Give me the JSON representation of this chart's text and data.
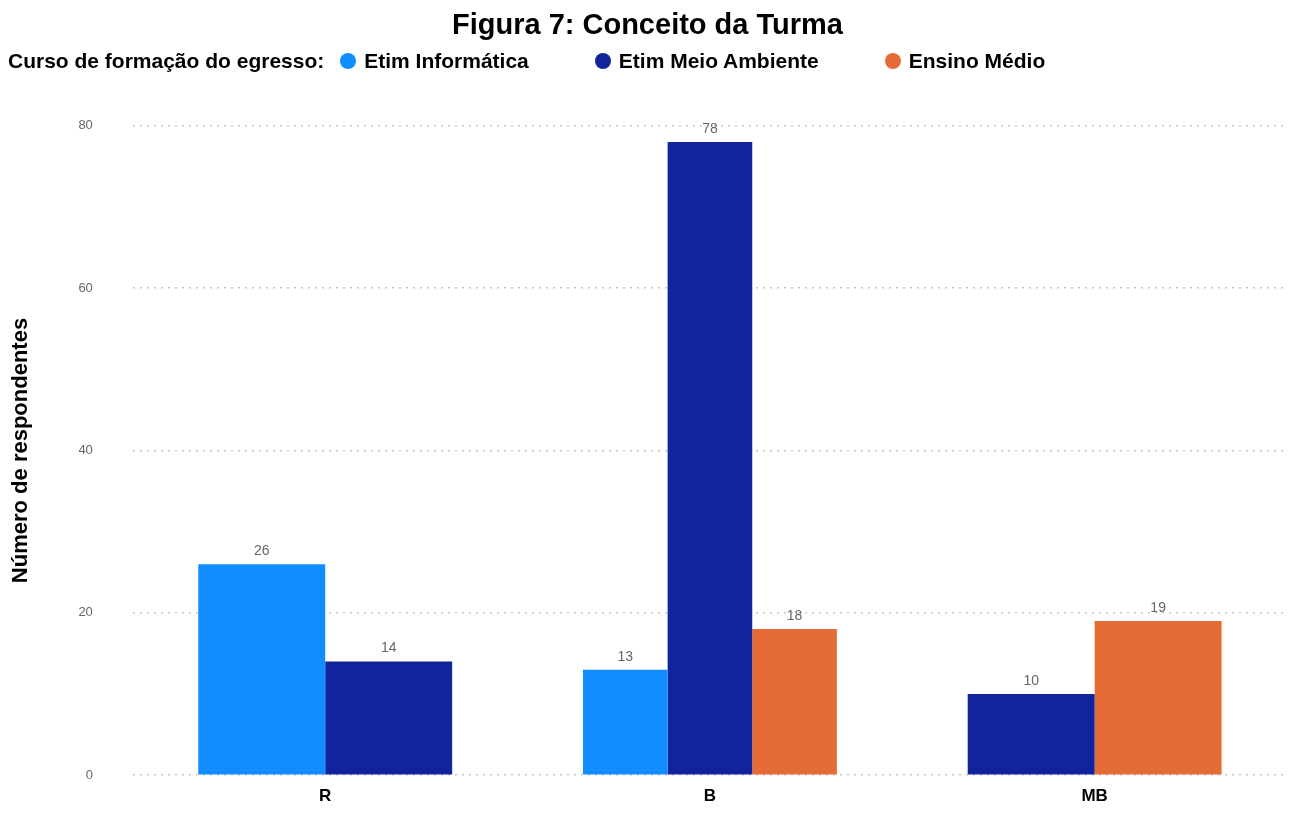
{
  "chart_data": {
    "type": "bar",
    "title": "Figura 7: Conceito da Turma",
    "ylabel": "Número de respondentes",
    "legend_title": "Curso de formação do egresso:",
    "categories": [
      "R",
      "B",
      "MB"
    ],
    "series": [
      {
        "name": "Etim Informática",
        "color": "#118dff",
        "values": [
          26,
          13,
          null
        ]
      },
      {
        "name": "Etim Meio Ambiente",
        "color": "#12239e",
        "values": [
          14,
          78,
          10
        ]
      },
      {
        "name": "Ensino Médio",
        "color": "#e66c37",
        "values": [
          null,
          18,
          19
        ]
      }
    ],
    "ylim": [
      0,
      80
    ],
    "yticks": [
      0,
      20,
      40,
      60,
      80
    ],
    "grid": "y",
    "legend": "top left",
    "data_labels": true
  }
}
